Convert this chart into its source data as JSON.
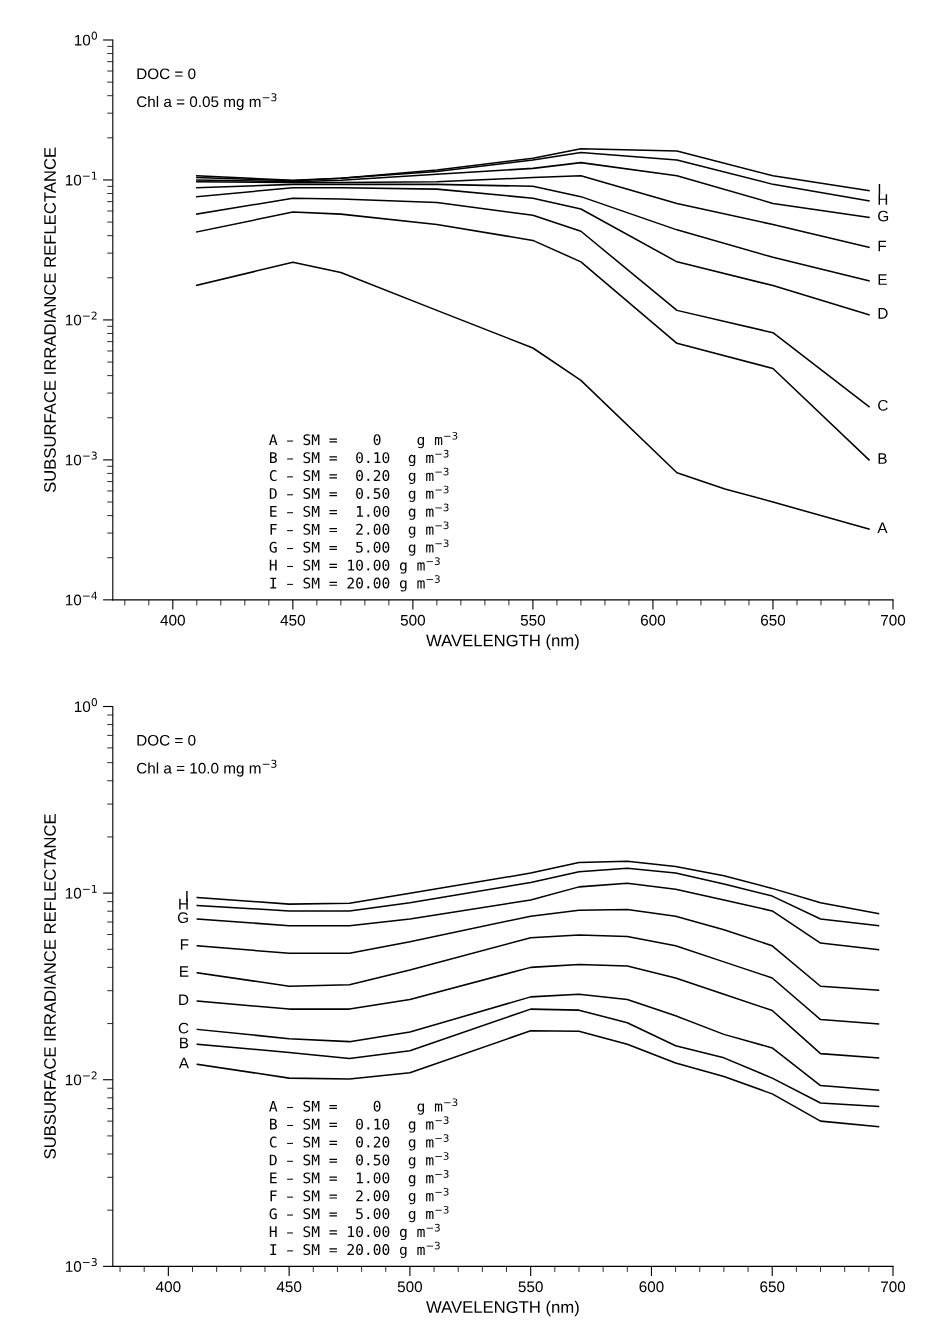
{
  "chart_data": [
    {
      "type": "line",
      "xlabel": "WAVELENGTH (nm)",
      "ylabel": "SUBSURFACE IRRADIANCE REFLECTANCE",
      "log": "y",
      "xlim": [
        375,
        700
      ],
      "ylim": [
        0.0001,
        1
      ],
      "xticks": [
        400,
        450,
        500,
        550,
        600,
        650,
        700
      ],
      "yticks": [
        {
          "value": 1,
          "label": "10$^{0}$"
        },
        {
          "value": 0.1,
          "label": "10$^{−1}$"
        },
        {
          "value": 0.01,
          "label": "10$^{−2}$"
        },
        {
          "value": 0.001,
          "label": "10$^{−3}$"
        },
        {
          "value": 0.0001,
          "label": "10$^{−4}$"
        }
      ],
      "grid": false,
      "legend": "right",
      "line_style": "solid",
      "marker": "none",
      "annotations": [
        "DOC = 0",
        "Chl a = 0.05 mg m$^{−3}$",
        "A – SM =    0    g m$^{−3}$",
        "B – SM =  0.10  g m$^{−3}$",
        "C – SM =  0.20  g m$^{−3}$",
        "D – SM =  0.50  g m$^{−3}$",
        "E – SM =  1.00  g m$^{−3}$",
        "F – SM =  2.00  g m$^{−3}$",
        "G – SM =  5.00  g m$^{−3}$",
        "H – SM = 10.00 g m$^{−3}$",
        "I – SM = 20.00 g m$^{−3}$"
      ],
      "series": [
        {
          "name": "A",
          "color": "#000000",
          "x": [
            410,
            450,
            470,
            510,
            550,
            570,
            610,
            630,
            650,
            690
          ],
          "values": [
            0.0177,
            0.0258,
            0.0218,
            0.0117,
            0.0063,
            0.0037,
            0.00081,
            0.00062,
            0.0005,
            0.00032
          ]
        },
        {
          "name": "B",
          "color": "#000000",
          "x": [
            410,
            450,
            470,
            510,
            550,
            570,
            610,
            650,
            690
          ],
          "values": [
            0.0425,
            0.059,
            0.057,
            0.048,
            0.037,
            0.026,
            0.0068,
            0.0045,
            0.001
          ]
        },
        {
          "name": "C",
          "color": "#000000",
          "x": [
            410,
            450,
            470,
            510,
            550,
            570,
            610,
            650,
            690
          ],
          "values": [
            0.057,
            0.074,
            0.073,
            0.069,
            0.056,
            0.043,
            0.0117,
            0.0081,
            0.0024
          ]
        },
        {
          "name": "D",
          "color": "#000000",
          "x": [
            410,
            450,
            470,
            510,
            550,
            570,
            610,
            650,
            690
          ],
          "values": [
            0.076,
            0.088,
            0.088,
            0.086,
            0.074,
            0.062,
            0.026,
            0.0176,
            0.0109
          ]
        },
        {
          "name": "E",
          "color": "#000000",
          "x": [
            410,
            450,
            470,
            510,
            550,
            570,
            610,
            650,
            690
          ],
          "values": [
            0.088,
            0.093,
            0.093,
            0.093,
            0.09,
            0.076,
            0.044,
            0.028,
            0.019
          ]
        },
        {
          "name": "F",
          "color": "#000000",
          "x": [
            410,
            450,
            470,
            510,
            550,
            570,
            610,
            650,
            690
          ],
          "values": [
            0.097,
            0.096,
            0.096,
            0.097,
            0.104,
            0.107,
            0.068,
            0.048,
            0.033
          ]
        },
        {
          "name": "G",
          "color": "#000000",
          "x": [
            410,
            450,
            470,
            510,
            550,
            570,
            610,
            650,
            690
          ],
          "values": [
            0.1,
            0.097,
            0.0995,
            0.11,
            0.121,
            0.133,
            0.107,
            0.068,
            0.054
          ]
        },
        {
          "name": "H",
          "color": "#000000",
          "x": [
            410,
            450,
            470,
            510,
            550,
            570,
            610,
            650,
            690
          ],
          "values": [
            0.104,
            0.0986,
            0.103,
            0.115,
            0.139,
            0.157,
            0.139,
            0.093,
            0.071
          ]
        },
        {
          "name": "I",
          "color": "#000000",
          "x": [
            410,
            450,
            470,
            510,
            550,
            570,
            610,
            650,
            690
          ],
          "values": [
            0.107,
            0.0995,
            0.103,
            0.118,
            0.143,
            0.167,
            0.161,
            0.107,
            0.084
          ]
        }
      ]
    },
    {
      "type": "line",
      "xlabel": "WAVELENGTH (nm)",
      "ylabel": "SUBSURFACE IRRADIANCE REFLECTANCE",
      "log": "y",
      "xlim": [
        377,
        700
      ],
      "ylim": [
        0.001,
        1
      ],
      "xticks": [
        400,
        450,
        500,
        550,
        600,
        650,
        700
      ],
      "yticks": [
        {
          "value": 1,
          "label": "10$^{0}$"
        },
        {
          "value": 0.1,
          "label": "10$^{−1}$"
        },
        {
          "value": 0.01,
          "label": "10$^{−2}$"
        },
        {
          "value": 0.001,
          "label": "10$^{−3}$"
        }
      ],
      "grid": false,
      "legend": "left",
      "line_style": "solid",
      "marker": "none",
      "annotations": [
        "DOC = 0",
        "Chl a = 10.0 mg m$^{−3}$",
        "A – SM =    0    g m$^{−3}$",
        "B – SM =  0.10  g m$^{−3}$",
        "C – SM =  0.20  g m$^{−3}$",
        "D – SM =  0.50  g m$^{−3}$",
        "E – SM =  1.00  g m$^{−3}$",
        "F – SM =  2.00  g m$^{−3}$",
        "G – SM =  5.00  g m$^{−3}$",
        "H – SM = 10.00 g m$^{−3}$",
        "I – SM = 20.00 g m$^{−3}$"
      ],
      "series": [
        {
          "name": "A",
          "color": "#000000",
          "x": [
            412,
            450,
            475,
            500,
            550,
            570,
            590,
            610,
            630,
            650,
            670,
            694
          ],
          "values": [
            0.0121,
            0.0102,
            0.0101,
            0.0109,
            0.0183,
            0.0182,
            0.0155,
            0.0123,
            0.0104,
            0.0084,
            0.006,
            0.0056
          ]
        },
        {
          "name": "B",
          "color": "#000000",
          "x": [
            412,
            450,
            475,
            500,
            550,
            570,
            590,
            610,
            630,
            650,
            670,
            694
          ],
          "values": [
            0.0155,
            0.014,
            0.013,
            0.0143,
            0.0239,
            0.0236,
            0.0202,
            0.0152,
            0.0131,
            0.0102,
            0.0075,
            0.0072
          ]
        },
        {
          "name": "C",
          "color": "#000000",
          "x": [
            412,
            450,
            475,
            500,
            550,
            570,
            590,
            610,
            630,
            650,
            670,
            694
          ],
          "values": [
            0.0186,
            0.0166,
            0.016,
            0.018,
            0.0278,
            0.0287,
            0.0269,
            0.022,
            0.0175,
            0.0148,
            0.0093,
            0.0088
          ]
        },
        {
          "name": "D",
          "color": "#000000",
          "x": [
            412,
            450,
            475,
            500,
            550,
            570,
            590,
            610,
            630,
            650,
            670,
            694
          ],
          "values": [
            0.0264,
            0.0239,
            0.0239,
            0.0269,
            0.04,
            0.0414,
            0.0407,
            0.0351,
            0.0287,
            0.0235,
            0.0138,
            0.0131
          ]
        },
        {
          "name": "E",
          "color": "#000000",
          "x": [
            412,
            450,
            475,
            500,
            550,
            570,
            590,
            610,
            630,
            650,
            670,
            694
          ],
          "values": [
            0.0374,
            0.0317,
            0.0323,
            0.0387,
            0.0577,
            0.0596,
            0.0586,
            0.0522,
            0.0428,
            0.0351,
            0.021,
            0.0199
          ]
        },
        {
          "name": "F",
          "color": "#000000",
          "x": [
            412,
            450,
            475,
            500,
            550,
            570,
            590,
            610,
            630,
            650,
            670,
            694
          ],
          "values": [
            0.0522,
            0.0476,
            0.0476,
            0.0549,
            0.0752,
            0.0809,
            0.0817,
            0.0752,
            0.0637,
            0.0522,
            0.0317,
            0.0302
          ]
        },
        {
          "name": "G",
          "color": "#000000",
          "x": [
            412,
            450,
            475,
            500,
            550,
            570,
            590,
            610,
            630,
            650,
            670,
            694
          ],
          "values": [
            0.0727,
            0.0669,
            0.0669,
            0.0727,
            0.0918,
            0.108,
            0.113,
            0.105,
            0.0918,
            0.0803,
            0.054,
            0.0497
          ]
        },
        {
          "name": "H",
          "color": "#000000",
          "x": [
            412,
            450,
            475,
            500,
            550,
            570,
            590,
            610,
            630,
            650,
            670,
            694
          ],
          "values": [
            0.0859,
            0.0803,
            0.0803,
            0.0888,
            0.114,
            0.13,
            0.136,
            0.128,
            0.112,
            0.0964,
            0.0727,
            0.0669
          ]
        },
        {
          "name": "I",
          "color": "#000000",
          "x": [
            412,
            450,
            475,
            500,
            550,
            570,
            590,
            610,
            630,
            650,
            670,
            694
          ],
          "values": [
            0.0948,
            0.0873,
            0.0882,
            0.0997,
            0.128,
            0.146,
            0.148,
            0.139,
            0.124,
            0.106,
            0.0888,
            0.0777
          ]
        }
      ]
    }
  ]
}
